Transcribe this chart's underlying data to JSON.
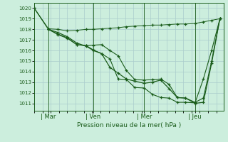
{
  "bg_color": "#cceedd",
  "grid_color": "#aacccc",
  "line_color": "#1a5c1a",
  "title": "Pression niveau de la mer( hPa )",
  "ylim": [
    1010.3,
    1020.5
  ],
  "yticks": [
    1011,
    1012,
    1013,
    1014,
    1015,
    1016,
    1017,
    1018,
    1019,
    1020
  ],
  "xtick_labels": [
    "| Mar",
    "| Ven",
    "| Mer",
    "| Jeu"
  ],
  "xtick_positions": [
    12,
    50,
    93,
    136
  ],
  "xlim": [
    0,
    160
  ],
  "line1_x": [
    0,
    12,
    20,
    28,
    36,
    44,
    50,
    57,
    64,
    71,
    78,
    85,
    93,
    100,
    107,
    114,
    121,
    128,
    136,
    143,
    150,
    157
  ],
  "line1_y": [
    1020.0,
    1018.05,
    1018.0,
    1017.85,
    1017.9,
    1018.0,
    1018.0,
    1018.05,
    1018.1,
    1018.15,
    1018.25,
    1018.3,
    1018.35,
    1018.4,
    1018.4,
    1018.45,
    1018.5,
    1018.5,
    1018.55,
    1018.7,
    1018.85,
    1019.0
  ],
  "line2_x": [
    0,
    12,
    20,
    28,
    36,
    44,
    50,
    57,
    64,
    71,
    78,
    85,
    93,
    100,
    107,
    114,
    121,
    128,
    136,
    143,
    150,
    157
  ],
  "line2_y": [
    1020.0,
    1018.0,
    1017.7,
    1017.3,
    1016.7,
    1016.4,
    1016.0,
    1015.7,
    1014.4,
    1013.85,
    1013.3,
    1013.1,
    1012.9,
    1013.0,
    1013.2,
    1012.4,
    1011.55,
    1011.5,
    1011.0,
    1011.1,
    1014.8,
    1019.0
  ],
  "line3_x": [
    12,
    20,
    28,
    36,
    44,
    50,
    57,
    64,
    71,
    78,
    85,
    93,
    100,
    107,
    114,
    121,
    128,
    136,
    143,
    150,
    157
  ],
  "line3_y": [
    1018.0,
    1017.55,
    1017.2,
    1016.55,
    1016.45,
    1016.5,
    1016.55,
    1016.0,
    1015.5,
    1014.1,
    1013.25,
    1013.2,
    1013.25,
    1013.3,
    1012.8,
    1011.55,
    1011.5,
    1011.1,
    1011.5,
    1015.0,
    1019.0
  ],
  "line4_x": [
    12,
    20,
    28,
    36,
    44,
    50,
    57,
    64,
    71,
    78,
    85,
    93,
    100,
    107,
    114,
    121,
    128,
    136,
    143,
    150,
    157
  ],
  "line4_y": [
    1018.0,
    1017.5,
    1017.15,
    1016.55,
    1016.45,
    1016.05,
    1015.7,
    1015.2,
    1013.3,
    1013.25,
    1012.5,
    1012.45,
    1011.85,
    1011.55,
    1011.5,
    1011.1,
    1011.1,
    1011.05,
    1013.3,
    1016.0,
    1019.0
  ]
}
